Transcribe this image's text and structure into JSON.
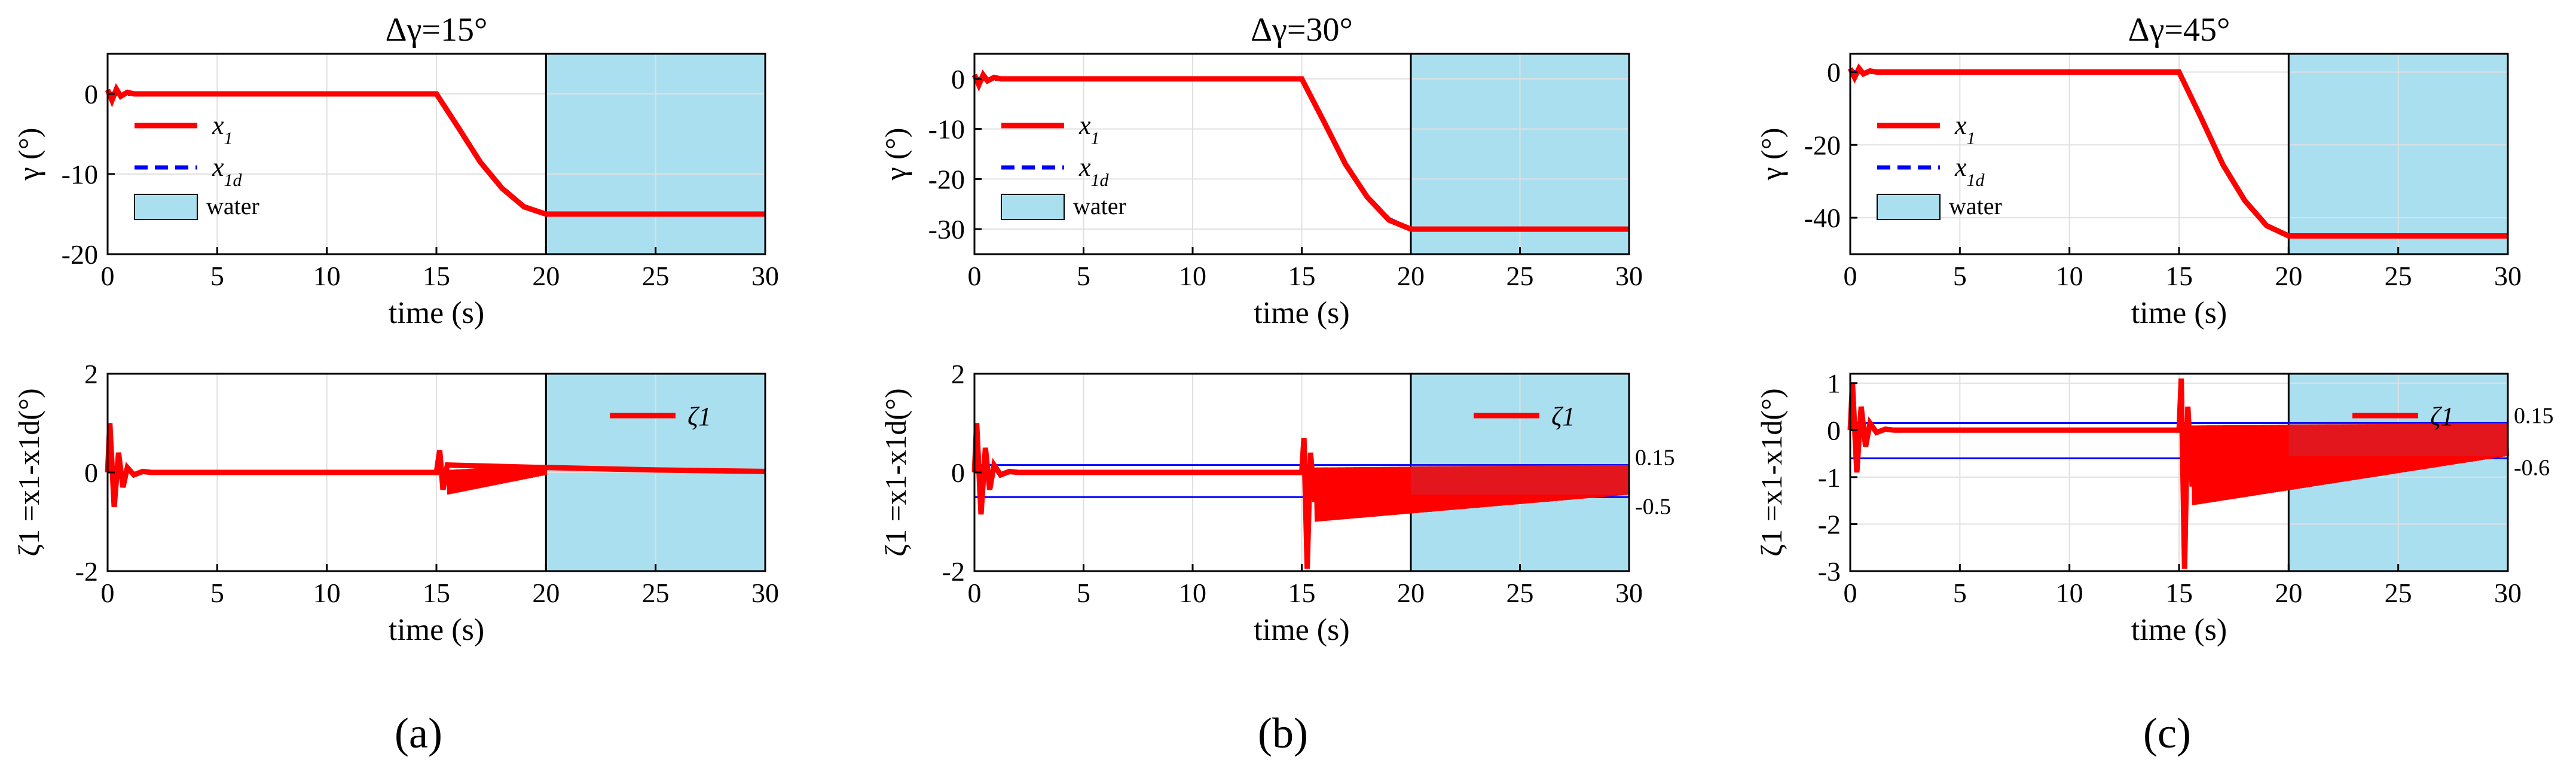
{
  "colors": {
    "actual": "#ff0000",
    "desired": "#0000ff",
    "water": "#aadff0",
    "bound": "#0000ff",
    "grid": "#e0e0e0"
  },
  "sub_captions": [
    "(a)",
    "(b)",
    "(c)"
  ],
  "chart_data": [
    {
      "type": "line",
      "id": "a-top",
      "title": "Δγ=15°",
      "xlabel": "time (s)",
      "ylabel": "γ (°)",
      "xlim": [
        0,
        30
      ],
      "ylim": [
        -20,
        5
      ],
      "xticks": [
        "0",
        "5",
        "10",
        "15",
        "20",
        "25",
        "30"
      ],
      "yticks": [
        "0",
        "-10",
        "-20"
      ],
      "ytick_values": [
        0,
        -10,
        -20
      ],
      "water_region": [
        20,
        30
      ],
      "target": -15,
      "legend": [
        "x1",
        "x1d",
        "water"
      ],
      "series": [
        {
          "name": "x1d",
          "x": [
            0,
            15,
            16,
            17,
            18,
            19,
            20,
            30
          ],
          "y": [
            0,
            0,
            -4.1,
            -8.4,
            -11.7,
            -14.0,
            -15,
            -15
          ]
        },
        {
          "name": "x1",
          "x": [
            0,
            0.2,
            0.4,
            0.6,
            0.9,
            1.2,
            15,
            16,
            17,
            18,
            19,
            20,
            30
          ],
          "y": [
            0.5,
            -0.8,
            0.6,
            -0.3,
            0.2,
            0,
            0,
            -4.2,
            -8.5,
            -11.8,
            -14.1,
            -15,
            -15
          ]
        }
      ]
    },
    {
      "type": "line",
      "id": "b-top",
      "title": "Δγ=30°",
      "xlabel": "time (s)",
      "ylabel": "γ (°)",
      "xlim": [
        0,
        30
      ],
      "ylim": [
        -35,
        5
      ],
      "xticks": [
        "0",
        "5",
        "10",
        "15",
        "20",
        "25",
        "30"
      ],
      "yticks": [
        "0",
        "-10",
        "-20",
        "-30"
      ],
      "ytick_values": [
        0,
        -10,
        -20,
        -30
      ],
      "water_region": [
        20,
        30
      ],
      "target": -30,
      "legend": [
        "x1",
        "x1d",
        "water"
      ],
      "series": [
        {
          "name": "x1d",
          "x": [
            0,
            15,
            16,
            17,
            18,
            19,
            20,
            30
          ],
          "y": [
            0,
            0,
            -8.2,
            -16.8,
            -23.4,
            -28.0,
            -30,
            -30
          ]
        },
        {
          "name": "x1",
          "x": [
            0,
            0.2,
            0.4,
            0.6,
            0.9,
            1.2,
            15,
            16,
            17,
            18,
            19,
            20,
            30
          ],
          "y": [
            0.8,
            -1.2,
            0.8,
            -0.4,
            0.3,
            0,
            0,
            -8.4,
            -17.0,
            -23.6,
            -28.2,
            -30,
            -30
          ]
        }
      ]
    },
    {
      "type": "line",
      "id": "c-top",
      "title": "Δγ=45°",
      "xlabel": "time (s)",
      "ylabel": "γ (°)",
      "xlim": [
        0,
        30
      ],
      "ylim": [
        -50,
        5
      ],
      "xticks": [
        "0",
        "5",
        "10",
        "15",
        "20",
        "25",
        "30"
      ],
      "yticks": [
        "0",
        "-20",
        "-40"
      ],
      "ytick_values": [
        0,
        -20,
        -40
      ],
      "water_region": [
        20,
        30
      ],
      "target": -45,
      "legend": [
        "x1",
        "x1d",
        "water"
      ],
      "series": [
        {
          "name": "x1d",
          "x": [
            0,
            15,
            16,
            17,
            18,
            19,
            20,
            30
          ],
          "y": [
            0,
            0,
            -12.3,
            -25.2,
            -35.1,
            -42.0,
            -45,
            -45
          ]
        },
        {
          "name": "x1",
          "x": [
            0,
            0.2,
            0.4,
            0.6,
            0.9,
            1.2,
            15,
            16,
            17,
            18,
            19,
            20,
            30
          ],
          "y": [
            1.0,
            -1.5,
            1.0,
            -0.5,
            0.3,
            0,
            0,
            -12.5,
            -25.4,
            -35.3,
            -42.2,
            -45,
            -45
          ]
        }
      ]
    },
    {
      "type": "line",
      "id": "a-bot",
      "xlabel": "time (s)",
      "ylabel": "ζ1 =x1-x1d(°)",
      "xlim": [
        0,
        30
      ],
      "ylim": [
        -2,
        2
      ],
      "xticks": [
        "0",
        "5",
        "10",
        "15",
        "20",
        "25",
        "30"
      ],
      "yticks": [
        "2",
        "0",
        "-2"
      ],
      "ytick_values": [
        2,
        0,
        -2
      ],
      "water_region": [
        20,
        30
      ],
      "legend": [
        "ζ1"
      ],
      "bounds": [],
      "bound_labels": [],
      "transient": [
        {
          "t": 0,
          "amp": 1.0,
          "period": 0.5,
          "decay": 0.6
        }
      ],
      "series": [
        {
          "name": "ζ1",
          "x": [
            0,
            0.1,
            0.3,
            0.5,
            0.7,
            0.9,
            1.2,
            1.6,
            2,
            15,
            15.15,
            15.3,
            15.5,
            19.8,
            20,
            25,
            30
          ],
          "y": [
            0,
            1.0,
            -0.7,
            0.4,
            -0.3,
            0.1,
            -0.05,
            0.02,
            0,
            0,
            0.45,
            -0.35,
            0.15,
            0.1,
            0.1,
            0.05,
            0.02
          ]
        }
      ],
      "oscillation": {
        "x_start": 15.5,
        "x_end": 20,
        "upper": [
          0.05,
          0.15
        ],
        "lower": [
          -0.45,
          -0.05
        ]
      }
    },
    {
      "type": "line",
      "id": "b-bot",
      "xlabel": "time (s)",
      "ylabel": "ζ1 =x1-x1d(°)",
      "xlim": [
        0,
        30
      ],
      "ylim": [
        -2,
        2
      ],
      "xticks": [
        "0",
        "5",
        "10",
        "15",
        "20",
        "25",
        "30"
      ],
      "yticks": [
        "2",
        "0",
        "-2"
      ],
      "ytick_values": [
        2,
        0,
        -2
      ],
      "water_region": [
        20,
        30
      ],
      "legend": [
        "ζ1"
      ],
      "bounds": [
        0.15,
        -0.5
      ],
      "bound_labels": [
        "0.15",
        "-0.5"
      ],
      "series": [
        {
          "name": "ζ1",
          "x": [
            0,
            0.1,
            0.3,
            0.5,
            0.7,
            0.9,
            1.2,
            1.6,
            2,
            15,
            15.1,
            15.25,
            15.4,
            15.6
          ],
          "y": [
            0,
            1.0,
            -0.85,
            0.5,
            -0.35,
            0.15,
            -0.05,
            0.02,
            0,
            0,
            0.7,
            -1.95,
            0.4,
            -0.6
          ]
        }
      ],
      "oscillation": {
        "x_start": 15.6,
        "x_end": 30,
        "upper": [
          0.1,
          0.15
        ],
        "lower": [
          -1.0,
          -0.45
        ]
      }
    },
    {
      "type": "line",
      "id": "c-bot",
      "xlabel": "time (s)",
      "ylabel": "ζ1 =x1-x1d(°)",
      "xlim": [
        0,
        30
      ],
      "ylim": [
        -3,
        1.2
      ],
      "xticks": [
        "0",
        "5",
        "10",
        "15",
        "20",
        "25",
        "30"
      ],
      "yticks": [
        "1",
        "0",
        "-1",
        "-2",
        "-3"
      ],
      "ytick_values": [
        1,
        0,
        -1,
        -2,
        -3
      ],
      "water_region": [
        20,
        30
      ],
      "legend": [
        "ζ1"
      ],
      "bounds": [
        0.15,
        -0.6
      ],
      "bound_labels": [
        "0.15",
        "-0.6"
      ],
      "series": [
        {
          "name": "ζ1",
          "x": [
            0,
            0.1,
            0.3,
            0.5,
            0.7,
            0.9,
            1.2,
            1.6,
            2,
            15,
            15.1,
            15.25,
            15.4,
            15.6
          ],
          "y": [
            0,
            1.0,
            -0.9,
            0.5,
            -0.35,
            0.15,
            -0.05,
            0.02,
            0,
            0,
            1.1,
            -2.95,
            0.5,
            -1.2
          ]
        }
      ],
      "oscillation": {
        "x_start": 15.6,
        "x_end": 30,
        "upper": [
          0.1,
          0.15
        ],
        "lower": [
          -1.6,
          -0.55
        ]
      }
    }
  ]
}
